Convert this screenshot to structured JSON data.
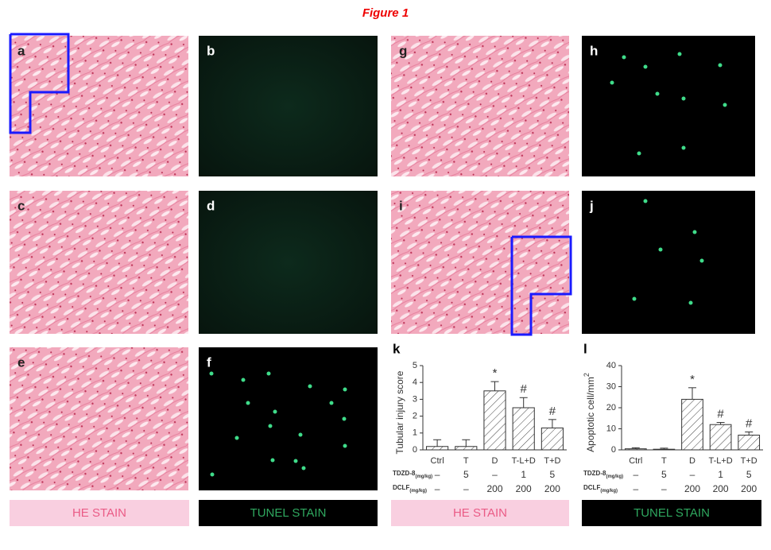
{
  "title": "Figure 1",
  "panels": [
    "a",
    "b",
    "c",
    "d",
    "e",
    "f",
    "g",
    "h",
    "i",
    "j"
  ],
  "captions": [
    "HE STAIN",
    "TUNEL STAIN",
    "HE STAIN",
    "TUNEL STAIN"
  ],
  "chart_data": [
    {
      "type": "bar",
      "panel": "k",
      "ylabel": "Tubular injury score",
      "categories": [
        "Ctrl",
        "T",
        "D",
        "T-L+D",
        "T+D"
      ],
      "values": [
        0.2,
        0.2,
        3.5,
        2.5,
        1.3
      ],
      "errors": [
        0.4,
        0.4,
        0.55,
        0.6,
        0.5
      ],
      "markers": [
        null,
        null,
        "*",
        "#",
        "#"
      ],
      "ylim": [
        0,
        5
      ],
      "yticks": [
        0,
        1,
        2,
        3,
        4,
        5
      ],
      "color": "#333333",
      "treatments": [
        {
          "name": "TDZD-8",
          "unit": "(mg/kg)",
          "values": [
            "–",
            "5",
            "–",
            "1",
            "5"
          ]
        },
        {
          "name": "DCLF",
          "unit": "(mg/kg)",
          "values": [
            "–",
            "–",
            "200",
            "200",
            "200"
          ]
        }
      ]
    },
    {
      "type": "bar",
      "panel": "l",
      "ylabel": "Apoptotic cell/mm",
      "ylabel_sup": "2",
      "categories": [
        "Ctrl",
        "T",
        "D",
        "T-L+D",
        "T+D"
      ],
      "values": [
        0.5,
        0.3,
        24,
        12,
        7
      ],
      "errors": [
        0.5,
        0.5,
        5.5,
        1,
        1.5
      ],
      "markers": [
        null,
        null,
        "*",
        "#",
        "#"
      ],
      "ylim": [
        0,
        40
      ],
      "yticks": [
        0,
        10,
        20,
        30,
        40
      ],
      "color": "#333333",
      "treatments": [
        {
          "name": "TDZD-8",
          "unit": "(mg/kg)",
          "values": [
            "–",
            "5",
            "–",
            "1",
            "5"
          ]
        },
        {
          "name": "DCLF",
          "unit": "(mg/kg)",
          "values": [
            "–",
            "–",
            "200",
            "200",
            "200"
          ]
        }
      ]
    }
  ]
}
